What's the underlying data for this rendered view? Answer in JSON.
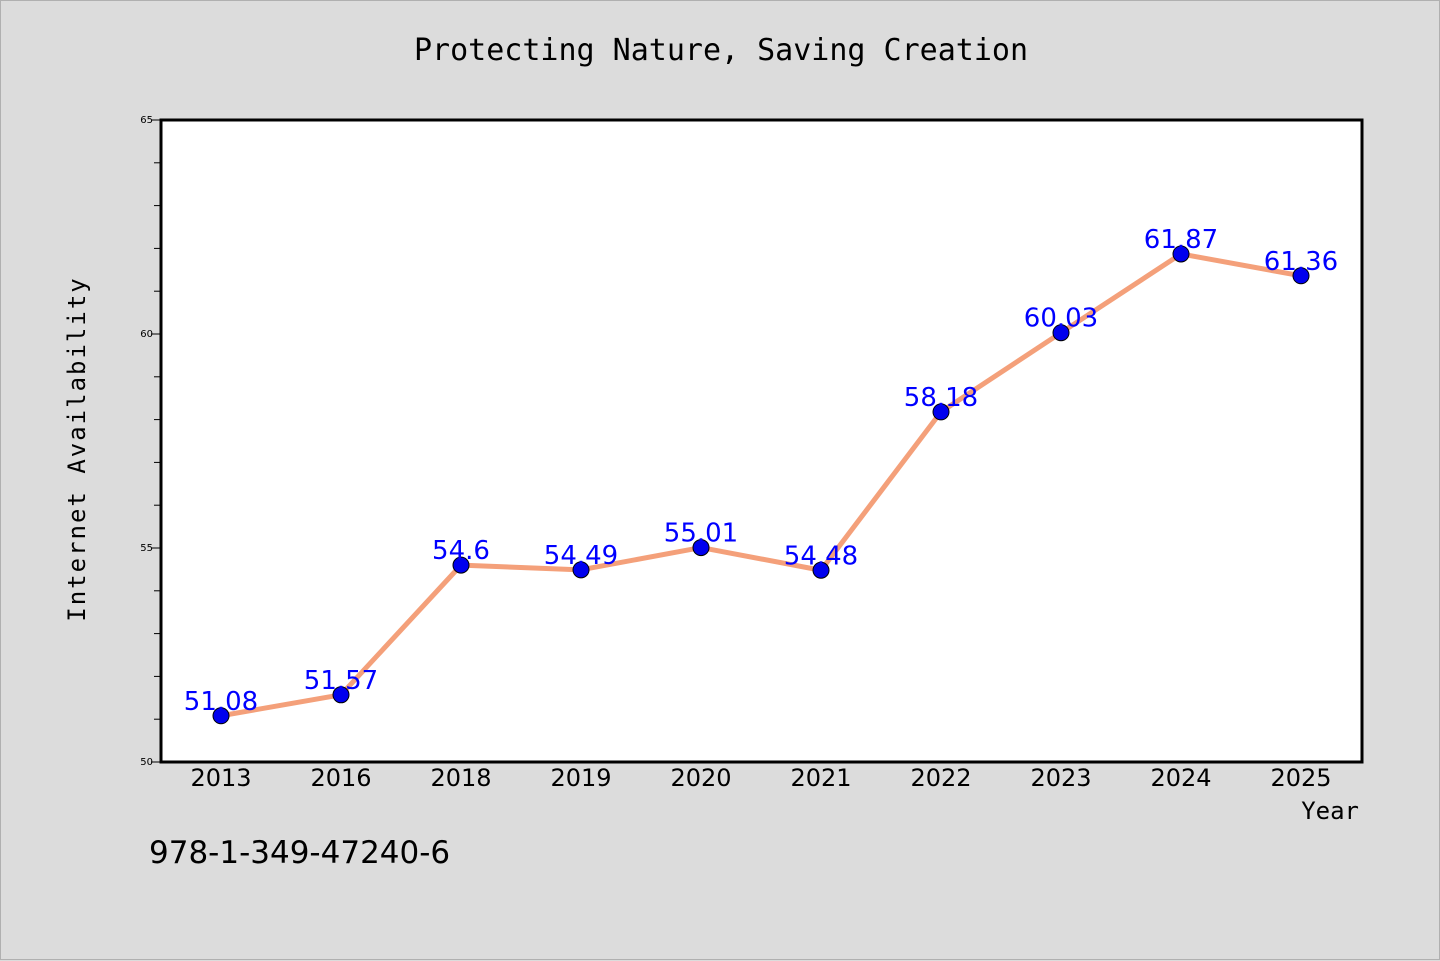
{
  "chart_data": {
    "type": "line",
    "title": "Protecting Nature, Saving Creation",
    "xlabel": "Year",
    "ylabel": "Internet Availability",
    "categories": [
      "2013",
      "2016",
      "2018",
      "2019",
      "2020",
      "2021",
      "2022",
      "2023",
      "2024",
      "2025"
    ],
    "series": [
      {
        "values": [
          51.08,
          51.57,
          54.6,
          54.49,
          55.01,
          54.48,
          58.18,
          60.03,
          61.87,
          61.36
        ],
        "data_labels": [
          "51.08",
          "51.57",
          "54.6",
          "54.49",
          "55.01",
          "54.48",
          "58.18",
          "60.03",
          "61.87",
          "61.36"
        ]
      }
    ],
    "ylim": [
      50,
      65
    ],
    "y_ticks": [
      "50",
      "55",
      "60",
      "65"
    ],
    "grid": false,
    "legend": "none",
    "colors": {
      "line": "#f4a07a",
      "marker": "#0000ee",
      "data_label": "#0000ff",
      "plot_background": "#ffffff",
      "figure_background": "#dcdcdc"
    }
  },
  "footer_text": "978-1-349-47240-6"
}
